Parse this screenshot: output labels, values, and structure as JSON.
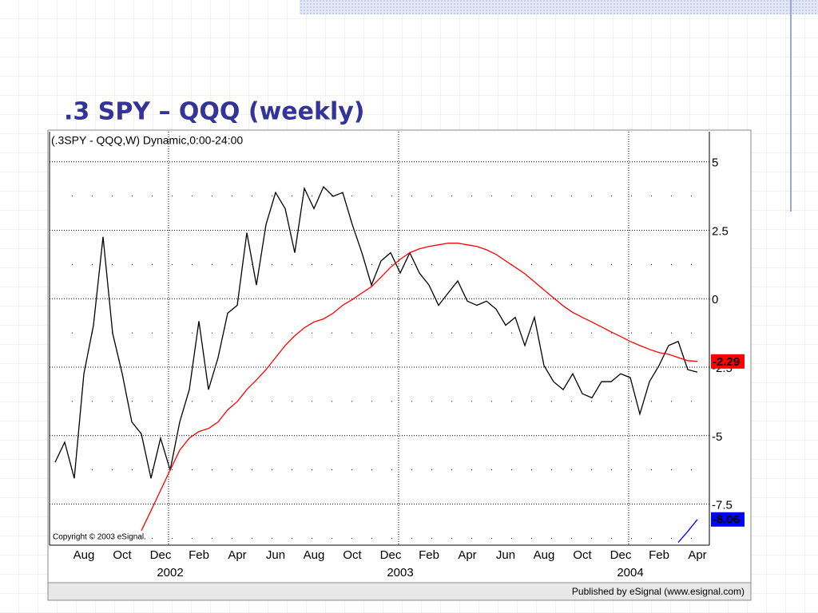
{
  "slide": {
    "title": ".3 SPY – QQQ (weekly)"
  },
  "chart_data": {
    "type": "line",
    "title": "(.3SPY - QQQ,W) Dynamic,0:00-24:00",
    "copyright": "Copyright © 2003 eSignal.",
    "footer": "Published by eSignal (www.esignal.com)",
    "years": [
      "2002",
      "2003",
      "2004"
    ],
    "categories": [
      null,
      null,
      null,
      "Aug",
      null,
      null,
      null,
      "Oct",
      null,
      null,
      null,
      "Dec",
      null,
      null,
      null,
      "Feb",
      null,
      null,
      null,
      "Apr",
      null,
      null,
      null,
      "Jun",
      null,
      null,
      null,
      "Aug",
      null,
      null,
      null,
      "Oct",
      null,
      null,
      null,
      "Dec",
      null,
      null,
      null,
      "Feb",
      null,
      null,
      null,
      "Apr",
      null,
      null,
      null,
      "Jun",
      null,
      null,
      null,
      "Aug",
      null,
      null,
      null,
      "Oct",
      null,
      null,
      null,
      "Dec",
      null,
      null,
      null,
      "Feb",
      null,
      null,
      null,
      "Apr"
    ],
    "series": [
      {
        "color": "#000000",
        "values": [
          -5.97,
          -5.24,
          -6.56,
          -2.74,
          -0.97,
          2.26,
          -1.26,
          -2.74,
          -4.5,
          -4.94,
          -6.56,
          -5.09,
          -6.26,
          -4.5,
          -3.32,
          -0.82,
          -3.32,
          -2.15,
          -0.53,
          -0.24,
          2.41,
          0.5,
          2.71,
          3.88,
          3.29,
          1.68,
          4.03,
          3.29,
          4.09,
          3.74,
          3.88,
          2.71,
          1.68,
          0.5,
          1.38,
          1.68,
          0.94,
          1.68,
          0.94,
          0.5,
          -0.24,
          0.21,
          0.65,
          -0.09,
          -0.24,
          -0.09,
          -0.38,
          -0.97,
          -0.68,
          -1.71,
          -0.68,
          -2.44,
          -3.03,
          -3.32,
          -2.74,
          -3.47,
          -3.62,
          -3.03,
          -3.03,
          -2.74,
          -2.88,
          -4.21,
          -3.03,
          -2.44,
          -1.71,
          -1.56,
          -2.59,
          -2.68
        ],
        "last_value_box": false
      },
      {
        "color": "#ff0000",
        "values": [
          null,
          null,
          null,
          null,
          null,
          null,
          null,
          null,
          null,
          -8.47,
          -7.74,
          -7.0,
          -6.26,
          -5.53,
          -5.09,
          -4.85,
          -4.74,
          -4.5,
          -4.06,
          -3.76,
          -3.32,
          -2.97,
          -2.59,
          -2.15,
          -1.71,
          -1.35,
          -1.06,
          -0.85,
          -0.74,
          -0.53,
          -0.24,
          -0.03,
          0.21,
          0.44,
          0.79,
          1.15,
          1.44,
          1.68,
          1.82,
          1.91,
          1.97,
          2.03,
          2.03,
          1.97,
          1.91,
          1.79,
          1.62,
          1.38,
          1.15,
          0.91,
          0.62,
          0.32,
          0.03,
          -0.26,
          -0.5,
          -0.68,
          -0.85,
          -1.03,
          -1.21,
          -1.38,
          -1.56,
          -1.71,
          -1.85,
          -1.97,
          -2.03,
          -2.15,
          -2.26,
          -2.29
        ],
        "last_value_box": true
      },
      {
        "color": "#0000ff",
        "values": [
          null,
          null,
          null,
          null,
          null,
          null,
          null,
          null,
          null,
          null,
          null,
          null,
          null,
          null,
          null,
          null,
          null,
          null,
          null,
          null,
          null,
          null,
          null,
          null,
          null,
          null,
          null,
          null,
          null,
          null,
          null,
          null,
          null,
          null,
          null,
          null,
          null,
          null,
          null,
          null,
          null,
          null,
          null,
          null,
          null,
          null,
          null,
          null,
          null,
          null,
          null,
          null,
          null,
          null,
          null,
          null,
          null,
          null,
          null,
          null,
          null,
          null,
          null,
          null,
          null,
          -8.9,
          -8.5,
          -8.06
        ],
        "last_value_box": true
      }
    ],
    "ylim": [
      -9,
      6.1
    ],
    "yticks": [
      5,
      2.5,
      0,
      -2.5,
      -5,
      -7.5
    ],
    "yminorticks": [
      3.75,
      1.25,
      -1.25,
      -3.75,
      -6.25,
      -8.75
    ],
    "grid": true
  }
}
